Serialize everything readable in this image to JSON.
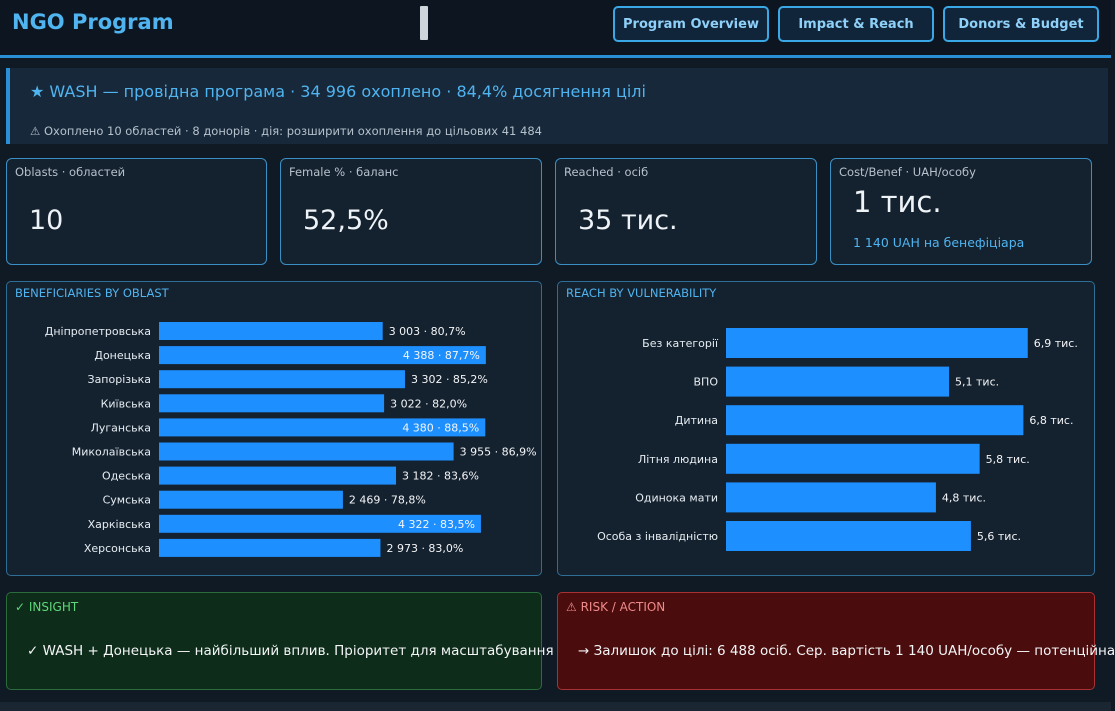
{
  "header": {
    "title": "NGO Program",
    "nav": [
      "Program Overview",
      "Impact & Reach",
      "Donors & Budget"
    ]
  },
  "banner": {
    "headline": "★ WASH — провідна програма · 34 996 охоплено · 84,4% досягнення цілі",
    "sub": "⚠ Охоплено 10 областей · 8 донорів · дія: розширити охоплення до цільових 41 484"
  },
  "kpis": [
    {
      "label": "Oblasts · областей",
      "value": "10",
      "note": ""
    },
    {
      "label": "Female % · баланс",
      "value": "52,5%",
      "note": ""
    },
    {
      "label": "Reached · осіб",
      "value": "35 тис.",
      "note": ""
    },
    {
      "label": "Cost/Benef · UAH/особу",
      "value": "1 тис.",
      "note": "1 140 UAH на бенефіціара"
    }
  ],
  "colors": {
    "bar": "#1e8fff",
    "accent": "#4fb4f0"
  },
  "chart_data": [
    {
      "type": "bar",
      "orientation": "horizontal",
      "title": "BENEFICIARIES BY OBLAST",
      "categories": [
        "Дніпропетровська",
        "Донецька",
        "Запорізька",
        "Київська",
        "Луганська",
        "Миколаївська",
        "Одеська",
        "Сумська",
        "Харківська",
        "Херсонська"
      ],
      "values": [
        3003,
        4388,
        3302,
        3022,
        4380,
        3955,
        3182,
        2469,
        4322,
        2973
      ],
      "labels": [
        "3 003 · 80,7%",
        "4 388 · 87,7%",
        "3 302 · 85,2%",
        "3 022 · 82,0%",
        "4 380 · 88,5%",
        "3 955 · 86,9%",
        "3 182 · 83,6%",
        "2 469 · 78,8%",
        "4 322 · 83,5%",
        "2 973 · 83,0%"
      ],
      "inside_label": [
        false,
        true,
        false,
        false,
        true,
        false,
        false,
        false,
        true,
        false
      ],
      "xlim": [
        0,
        4900
      ]
    },
    {
      "type": "bar",
      "orientation": "horizontal",
      "title": "REACH BY VULNERABILITY",
      "categories": [
        "Без категорії",
        "ВПО",
        "Дитина",
        "Літня людина",
        "Одинока мати",
        "Особа з інвалідністю"
      ],
      "values": [
        6.9,
        5.1,
        6.8,
        5.8,
        4.8,
        5.6
      ],
      "labels": [
        "6,9 тис.",
        "5,1 тис.",
        "6,8 тис.",
        "5,8 тис.",
        "4,8 тис.",
        "5,6 тис."
      ],
      "xlim": [
        0,
        7.5
      ]
    }
  ],
  "insight": {
    "title": "✓ INSIGHT",
    "text": "✓ WASH + Донецька — найбільший вплив. Пріоритет для масштабування"
  },
  "risk": {
    "title": "⚠ RISK / ACTION",
    "text": "→ Залишок до цілі: 6 488 осіб. Сер. вартість 1 140 UAH/особу — потенційна"
  }
}
